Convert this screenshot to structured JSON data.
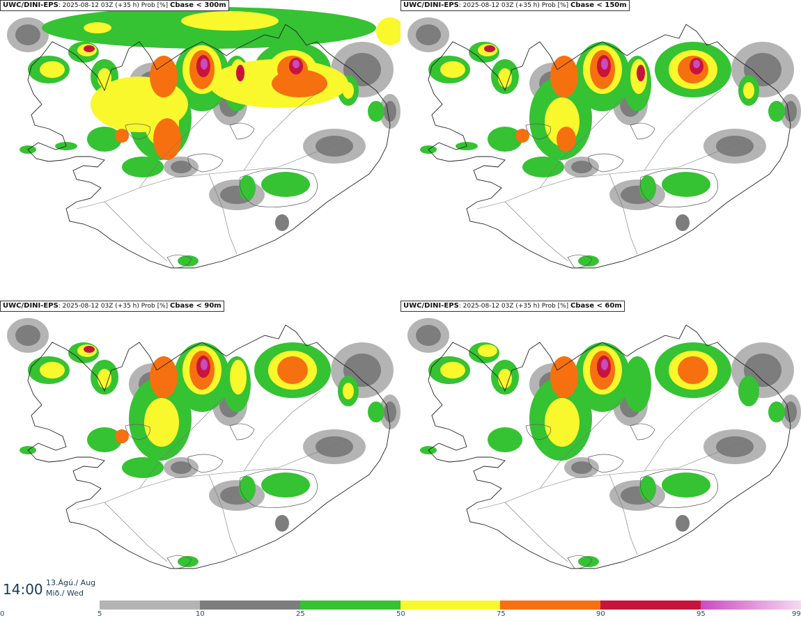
{
  "panels": [
    {
      "model": "UWC/DINI-EPS",
      "run": ": 2025-08-12 03Z (+35 h) Prob [%]",
      "threshold": "Cbase < 300m",
      "coverage": 1.0
    },
    {
      "model": "UWC/DINI-EPS",
      "run": ": 2025-08-12 03Z (+35 h) Prob [%]",
      "threshold": "Cbase < 150m",
      "coverage": 0.7
    },
    {
      "model": "UWC/DINI-EPS",
      "run": ": 2025-08-12 03Z (+35 h) Prob [%]",
      "threshold": "Cbase < 90m",
      "coverage": 0.55
    },
    {
      "model": "UWC/DINI-EPS",
      "run": ": 2025-08-12 03Z (+35 h) Prob [%]",
      "threshold": "Cbase < 60m",
      "coverage": 0.5
    }
  ],
  "time": {
    "clock": "14:00",
    "date_line1": "13.Ágú./ Aug",
    "date_line2": "Mið./ Wed"
  },
  "legend": {
    "ticks": [
      "0",
      "5",
      "10",
      "25",
      "50",
      "75",
      "90",
      "95",
      "99"
    ],
    "colors": [
      "#b4b4b4",
      "#7d7d7d",
      "#35c233",
      "#f8f82c",
      "#f7700f",
      "#c8143c",
      "#c94cc0"
    ]
  }
}
